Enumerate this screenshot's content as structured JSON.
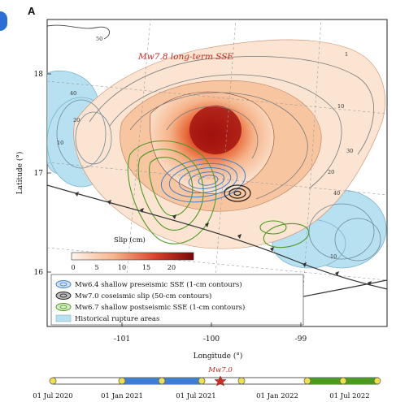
{
  "panel": {
    "letter": "A"
  },
  "map": {
    "title_text": "Mw7.8 long-term SSE",
    "xlabel": "Longitude (°)",
    "ylabel": "Latitude (°)",
    "xticks": [
      "-101",
      "-100",
      "-99"
    ],
    "yticks": [
      "18",
      "17",
      "16"
    ],
    "contour_labels": [
      "50",
      "40",
      "1",
      "10",
      "20",
      "30",
      "40",
      "20",
      "10",
      "10"
    ],
    "colors": {
      "slip_high": "#8a0a0a",
      "slip_low": "#fbe3cf",
      "rupture": "#b5e0f0",
      "presiesmic": "#3f7fd1",
      "postseismic": "#4d9a22",
      "coseismic": "#222222",
      "trench": "#333333"
    }
  },
  "colorbar": {
    "title": "Slip (cm)",
    "ticks": [
      "0",
      "5",
      "10",
      "15",
      "20"
    ],
    "range": [
      0,
      20
    ]
  },
  "legend": {
    "items": [
      {
        "name": "presiesmic",
        "label": "Mw6.4 shallow preseismic SSE (1-cm contours)"
      },
      {
        "name": "coseismic",
        "label": "Mw7.0 coseismic slip (50-cm contours)"
      },
      {
        "name": "postseismic",
        "label": "Mw6.7 shallow postseismic SSE (1-cm contours)"
      },
      {
        "name": "rupture",
        "label": "Historical rupture areas"
      }
    ]
  },
  "timeline": {
    "event_label": "Mw7.0",
    "dates": [
      "01 Jul 2020",
      "01 Jan 2021",
      "01 Jul 2021",
      "01 Jan 2022",
      "01 Jul 2022"
    ]
  }
}
